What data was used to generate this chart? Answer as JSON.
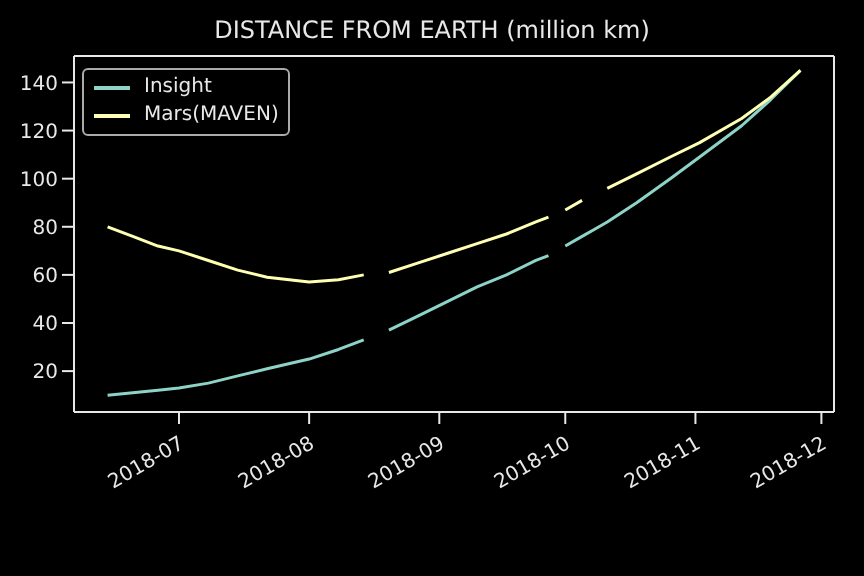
{
  "chart_data": {
    "type": "line",
    "title": "DISTANCE FROM EARTH (million km)",
    "x": [
      "2018-06-14",
      "2018-06-20",
      "2018-06-26",
      "2018-07-01",
      "2018-07-08",
      "2018-07-15",
      "2018-07-22",
      "2018-08-01",
      "2018-08-08",
      "2018-08-14",
      "2018-08-17",
      "2018-08-20",
      "2018-08-27",
      "2018-09-03",
      "2018-09-10",
      "2018-09-17",
      "2018-09-24",
      "2018-09-27",
      "2018-09-29",
      "2018-10-01",
      "2018-10-05",
      "2018-10-08",
      "2018-10-11",
      "2018-10-18",
      "2018-10-26",
      "2018-11-02",
      "2018-11-12",
      "2018-11-19",
      "2018-11-26"
    ],
    "series": [
      {
        "name": "Insight",
        "color": "#8dd3c7",
        "values": [
          10,
          11,
          12,
          13,
          15,
          18,
          21,
          25,
          29,
          33,
          null,
          37,
          43,
          49,
          55,
          60,
          66,
          68,
          null,
          72,
          76,
          79,
          82,
          90,
          100,
          109,
          122,
          133,
          145
        ]
      },
      {
        "name": "Mars(MAVEN)",
        "color": "#feffb3",
        "values": [
          80,
          76,
          72,
          70,
          66,
          62,
          59,
          57,
          58,
          60,
          null,
          61,
          65,
          69,
          73,
          77,
          82,
          84,
          null,
          87,
          91,
          null,
          96,
          102,
          109,
          115,
          125,
          134,
          145
        ]
      }
    ],
    "xlim": [
      "2018-06-06",
      "2018-12-04"
    ],
    "xticks": [
      {
        "value": "2018-07-01",
        "label": "2018-07"
      },
      {
        "value": "2018-08-01",
        "label": "2018-08"
      },
      {
        "value": "2018-09-01",
        "label": "2018-09"
      },
      {
        "value": "2018-10-01",
        "label": "2018-10"
      },
      {
        "value": "2018-11-01",
        "label": "2018-11"
      },
      {
        "value": "2018-12-01",
        "label": "2018-12"
      }
    ],
    "ylim": [
      3,
      151
    ],
    "yticks": [
      20,
      40,
      60,
      80,
      100,
      120,
      140
    ],
    "legend": "top left",
    "grid": false,
    "marker": "none",
    "line_style": "solid"
  }
}
